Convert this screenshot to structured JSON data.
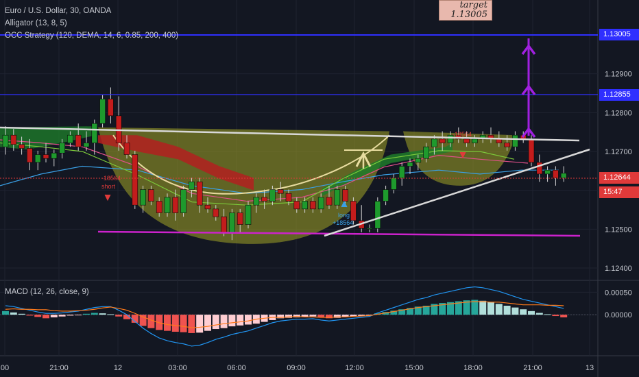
{
  "chart_data": [
    {
      "type": "candlestick",
      "title": "Euro / U.S. Dollar, 30, OANDA",
      "indicators": [
        "Alligator (13, 8, 5)",
        "OCC Strategy (120, DEMA, 14, 6, 0.85, 200, 400)"
      ],
      "x_ticks": [
        "00",
        "21:00",
        "12",
        "03:00",
        "06:00",
        "09:00",
        "12:00",
        "15:00",
        "18:00",
        "21:00",
        "13"
      ],
      "y_ticks": [
        "1.12900",
        "1.12800",
        "1.12700",
        "1.12500",
        "1.12400"
      ],
      "ylim": [
        1.1237,
        1.1309
      ],
      "price_lines": [
        {
          "label": "1.13005",
          "value": 1.13005,
          "color": "#2f2fff"
        },
        {
          "label": "1.12855",
          "value": 1.12855,
          "color": "#2f2fff"
        },
        {
          "label": "1.12644",
          "value": 1.12644,
          "color": "#e03a3a"
        }
      ],
      "countdown": "15:47",
      "annotations": {
        "target_label": "target",
        "target_value": "1.13005",
        "long_label": "long",
        "long_value": "+18564",
        "short_label": "short",
        "short_value": "-18564",
        "short2_value": "-18564"
      },
      "candles": [
        {
          "o": 1.12712,
          "h": 1.12765,
          "l": 1.12692,
          "c": 1.12742
        },
        {
          "o": 1.12742,
          "h": 1.12758,
          "l": 1.12702,
          "c": 1.12718
        },
        {
          "o": 1.12718,
          "h": 1.12738,
          "l": 1.12692,
          "c": 1.12708
        },
        {
          "o": 1.12708,
          "h": 1.12732,
          "l": 1.12652,
          "c": 1.12672
        },
        {
          "o": 1.12672,
          "h": 1.12702,
          "l": 1.12652,
          "c": 1.12692
        },
        {
          "o": 1.12692,
          "h": 1.12722,
          "l": 1.12672,
          "c": 1.12682
        },
        {
          "o": 1.12682,
          "h": 1.12705,
          "l": 1.12662,
          "c": 1.12696
        },
        {
          "o": 1.12696,
          "h": 1.12732,
          "l": 1.12682,
          "c": 1.12722
        },
        {
          "o": 1.12722,
          "h": 1.12752,
          "l": 1.12712,
          "c": 1.12742
        },
        {
          "o": 1.12742,
          "h": 1.12772,
          "l": 1.12702,
          "c": 1.12712
        },
        {
          "o": 1.12712,
          "h": 1.12752,
          "l": 1.12702,
          "c": 1.12722
        },
        {
          "o": 1.12722,
          "h": 1.12782,
          "l": 1.12692,
          "c": 1.12772
        },
        {
          "o": 1.12772,
          "h": 1.12845,
          "l": 1.12762,
          "c": 1.12835
        },
        {
          "o": 1.12835,
          "h": 1.12865,
          "l": 1.12772,
          "c": 1.12792
        },
        {
          "o": 1.12792,
          "h": 1.12842,
          "l": 1.12702,
          "c": 1.12722
        },
        {
          "o": 1.12722,
          "h": 1.12742,
          "l": 1.12682,
          "c": 1.12692
        },
        {
          "o": 1.12692,
          "h": 1.12702,
          "l": 1.12552,
          "c": 1.12562
        },
        {
          "o": 1.12562,
          "h": 1.12612,
          "l": 1.12542,
          "c": 1.12602
        },
        {
          "o": 1.12602,
          "h": 1.12612,
          "l": 1.12562,
          "c": 1.12572
        },
        {
          "o": 1.12572,
          "h": 1.12582,
          "l": 1.12532,
          "c": 1.12542
        },
        {
          "o": 1.12542,
          "h": 1.12592,
          "l": 1.12532,
          "c": 1.12582
        },
        {
          "o": 1.12582,
          "h": 1.12602,
          "l": 1.12522,
          "c": 1.12542
        },
        {
          "o": 1.12542,
          "h": 1.12612,
          "l": 1.12532,
          "c": 1.12602
        },
        {
          "o": 1.12602,
          "h": 1.12632,
          "l": 1.12582,
          "c": 1.12622
        },
        {
          "o": 1.12622,
          "h": 1.12632,
          "l": 1.12542,
          "c": 1.12562
        },
        {
          "o": 1.12562,
          "h": 1.12582,
          "l": 1.12542,
          "c": 1.12552
        },
        {
          "o": 1.12552,
          "h": 1.12562,
          "l": 1.12522,
          "c": 1.12532
        },
        {
          "o": 1.12532,
          "h": 1.12552,
          "l": 1.12482,
          "c": 1.12492
        },
        {
          "o": 1.12492,
          "h": 1.12552,
          "l": 1.12472,
          "c": 1.12542
        },
        {
          "o": 1.12542,
          "h": 1.12552,
          "l": 1.12492,
          "c": 1.12512
        },
        {
          "o": 1.12512,
          "h": 1.12572,
          "l": 1.12502,
          "c": 1.12562
        },
        {
          "o": 1.12562,
          "h": 1.12592,
          "l": 1.12542,
          "c": 1.12582
        },
        {
          "o": 1.12582,
          "h": 1.12602,
          "l": 1.12552,
          "c": 1.12572
        },
        {
          "o": 1.12572,
          "h": 1.12612,
          "l": 1.12562,
          "c": 1.12602
        },
        {
          "o": 1.12602,
          "h": 1.12622,
          "l": 1.12572,
          "c": 1.12592
        },
        {
          "o": 1.12592,
          "h": 1.12602,
          "l": 1.12562,
          "c": 1.12572
        },
        {
          "o": 1.12572,
          "h": 1.12582,
          "l": 1.12542,
          "c": 1.12552
        },
        {
          "o": 1.12552,
          "h": 1.12582,
          "l": 1.12542,
          "c": 1.12572
        },
        {
          "o": 1.12572,
          "h": 1.12582,
          "l": 1.12542,
          "c": 1.12552
        },
        {
          "o": 1.12552,
          "h": 1.12592,
          "l": 1.12542,
          "c": 1.12582
        },
        {
          "o": 1.12582,
          "h": 1.12612,
          "l": 1.12552,
          "c": 1.12562
        },
        {
          "o": 1.12562,
          "h": 1.12612,
          "l": 1.12552,
          "c": 1.12602
        },
        {
          "o": 1.12602,
          "h": 1.12612,
          "l": 1.12562,
          "c": 1.12572
        },
        {
          "o": 1.12572,
          "h": 1.12582,
          "l": 1.12512,
          "c": 1.12522
        },
        {
          "o": 1.12522,
          "h": 1.12562,
          "l": 1.12492,
          "c": 1.12502
        },
        {
          "o": 1.12502,
          "h": 1.12512,
          "l": 1.12492,
          "c": 1.12502
        },
        {
          "o": 1.12502,
          "h": 1.12582,
          "l": 1.12492,
          "c": 1.12572
        },
        {
          "o": 1.12572,
          "h": 1.12612,
          "l": 1.12562,
          "c": 1.12602
        },
        {
          "o": 1.12602,
          "h": 1.12642,
          "l": 1.12592,
          "c": 1.12632
        },
        {
          "o": 1.12632,
          "h": 1.12672,
          "l": 1.12612,
          "c": 1.12662
        },
        {
          "o": 1.12662,
          "h": 1.12682,
          "l": 1.12642,
          "c": 1.12672
        },
        {
          "o": 1.12672,
          "h": 1.12692,
          "l": 1.12652,
          "c": 1.12682
        },
        {
          "o": 1.12682,
          "h": 1.12722,
          "l": 1.12672,
          "c": 1.12712
        },
        {
          "o": 1.12712,
          "h": 1.12742,
          "l": 1.12692,
          "c": 1.12732
        },
        {
          "o": 1.12732,
          "h": 1.12752,
          "l": 1.12702,
          "c": 1.12722
        },
        {
          "o": 1.12722,
          "h": 1.12752,
          "l": 1.12712,
          "c": 1.12742
        },
        {
          "o": 1.12742,
          "h": 1.12762,
          "l": 1.12722,
          "c": 1.12732
        },
        {
          "o": 1.12732,
          "h": 1.12752,
          "l": 1.12712,
          "c": 1.12722
        },
        {
          "o": 1.12722,
          "h": 1.12742,
          "l": 1.12712,
          "c": 1.12732
        },
        {
          "o": 1.12732,
          "h": 1.12752,
          "l": 1.12722,
          "c": 1.12742
        },
        {
          "o": 1.12742,
          "h": 1.12762,
          "l": 1.12722,
          "c": 1.12732
        },
        {
          "o": 1.12732,
          "h": 1.12752,
          "l": 1.12712,
          "c": 1.12722
        },
        {
          "o": 1.12722,
          "h": 1.12742,
          "l": 1.12702,
          "c": 1.12712
        },
        {
          "o": 1.12712,
          "h": 1.12752,
          "l": 1.12702,
          "c": 1.12742
        },
        {
          "o": 1.12742,
          "h": 1.12752,
          "l": 1.12722,
          "c": 1.12732
        },
        {
          "o": 1.12732,
          "h": 1.12742,
          "l": 1.12662,
          "c": 1.12672
        },
        {
          "o": 1.12672,
          "h": 1.12692,
          "l": 1.12622,
          "c": 1.12642
        },
        {
          "o": 1.12642,
          "h": 1.12662,
          "l": 1.12622,
          "c": 1.12652
        },
        {
          "o": 1.12652,
          "h": 1.12662,
          "l": 1.12612,
          "c": 1.12632
        },
        {
          "o": 1.12632,
          "h": 1.12662,
          "l": 1.12622,
          "c": 1.12644
        }
      ]
    },
    {
      "type": "bar",
      "title": "MACD (12, 26, close, 9)",
      "y_ticks": [
        "0.00050",
        "0.00000"
      ],
      "ylim": [
        -0.0009,
        0.00075
      ],
      "histogram": [
        8e-05,
        5e-05,
        2e-05,
        -2e-05,
        -5e-05,
        -8e-05,
        -6e-05,
        -4e-05,
        -2e-05,
        -1e-05,
        2e-05,
        4e-05,
        3e-05,
        1e-05,
        -4e-05,
        -0.0001,
        -0.00018,
        -0.00025,
        -0.0003,
        -0.00034,
        -0.00036,
        -0.00038,
        -0.00039,
        -0.00041,
        -0.0004,
        -0.00036,
        -0.00032,
        -0.0003,
        -0.00026,
        -0.00024,
        -0.00022,
        -0.0002,
        -0.00016,
        -0.00012,
        -8e-05,
        -7e-05,
        -6e-05,
        -5e-05,
        -4e-05,
        -6e-05,
        -8e-05,
        -7e-05,
        -5e-05,
        -4e-05,
        -3e-05,
        -2e-05,
        3e-05,
        6e-05,
        9e-05,
        0.00012,
        0.00015,
        0.00018,
        0.0002,
        0.00024,
        0.00026,
        0.00028,
        0.0003,
        0.00032,
        0.00033,
        0.00031,
        0.00028,
        0.00024,
        0.0002,
        0.00016,
        0.00012,
        8e-05,
        4e-05,
        1e-05,
        -3e-05,
        -6e-05
      ],
      "macd_line": [
        0.0002,
        0.00018,
        0.00014,
        0.0001,
        6e-05,
        3e-05,
        3e-05,
        4e-05,
        6e-05,
        8e-05,
        0.00012,
        0.00016,
        0.00018,
        0.00018,
        0.0001,
        0.0,
        -0.00015,
        -0.0003,
        -0.00042,
        -0.00052,
        -0.00058,
        -0.00062,
        -0.00065,
        -0.0007,
        -0.00068,
        -0.00062,
        -0.00055,
        -0.0005,
        -0.00044,
        -0.0004,
        -0.00036,
        -0.0003,
        -0.00024,
        -0.00018,
        -0.00014,
        -0.00012,
        -0.0001,
        -0.0001,
        -9e-05,
        -0.00012,
        -0.00014,
        -0.00012,
        -0.0001,
        -8e-05,
        -6e-05,
        -4e-05,
        4e-05,
        0.0001,
        0.00016,
        0.00022,
        0.00028,
        0.00034,
        0.00038,
        0.00044,
        0.00048,
        0.00052,
        0.00056,
        0.0006,
        0.00062,
        0.0006,
        0.00056,
        0.00052,
        0.00046,
        0.0004,
        0.00034,
        0.0003,
        0.00026,
        0.00022,
        0.00018,
        0.00014
      ],
      "signal_line": [
        0.00012,
        0.00013,
        0.00012,
        0.00012,
        0.00011,
        0.00011,
        9e-05,
        8e-05,
        8e-05,
        9e-05,
        0.0001,
        0.00012,
        0.00015,
        0.00017,
        0.00014,
        0.0001,
        3e-05,
        -5e-05,
        -0.00012,
        -0.00018,
        -0.00022,
        -0.00024,
        -0.00026,
        -0.00029,
        -0.00028,
        -0.00026,
        -0.00023,
        -0.0002,
        -0.00018,
        -0.00016,
        -0.00014,
        -0.0001,
        -8e-05,
        -6e-05,
        -6e-05,
        -5e-05,
        -4e-05,
        -5e-05,
        -5e-05,
        -6e-05,
        -6e-05,
        -5e-05,
        -5e-05,
        -4e-05,
        -3e-05,
        -2e-05,
        1e-05,
        4e-05,
        7e-05,
        0.0001,
        0.00013,
        0.00016,
        0.00018,
        0.0002,
        0.00022,
        0.00024,
        0.00026,
        0.00028,
        0.00029,
        0.00029,
        0.00028,
        0.00028,
        0.00026,
        0.00024,
        0.00022,
        0.00022,
        0.00022,
        0.00021,
        0.00021,
        0.0002
      ]
    }
  ]
}
